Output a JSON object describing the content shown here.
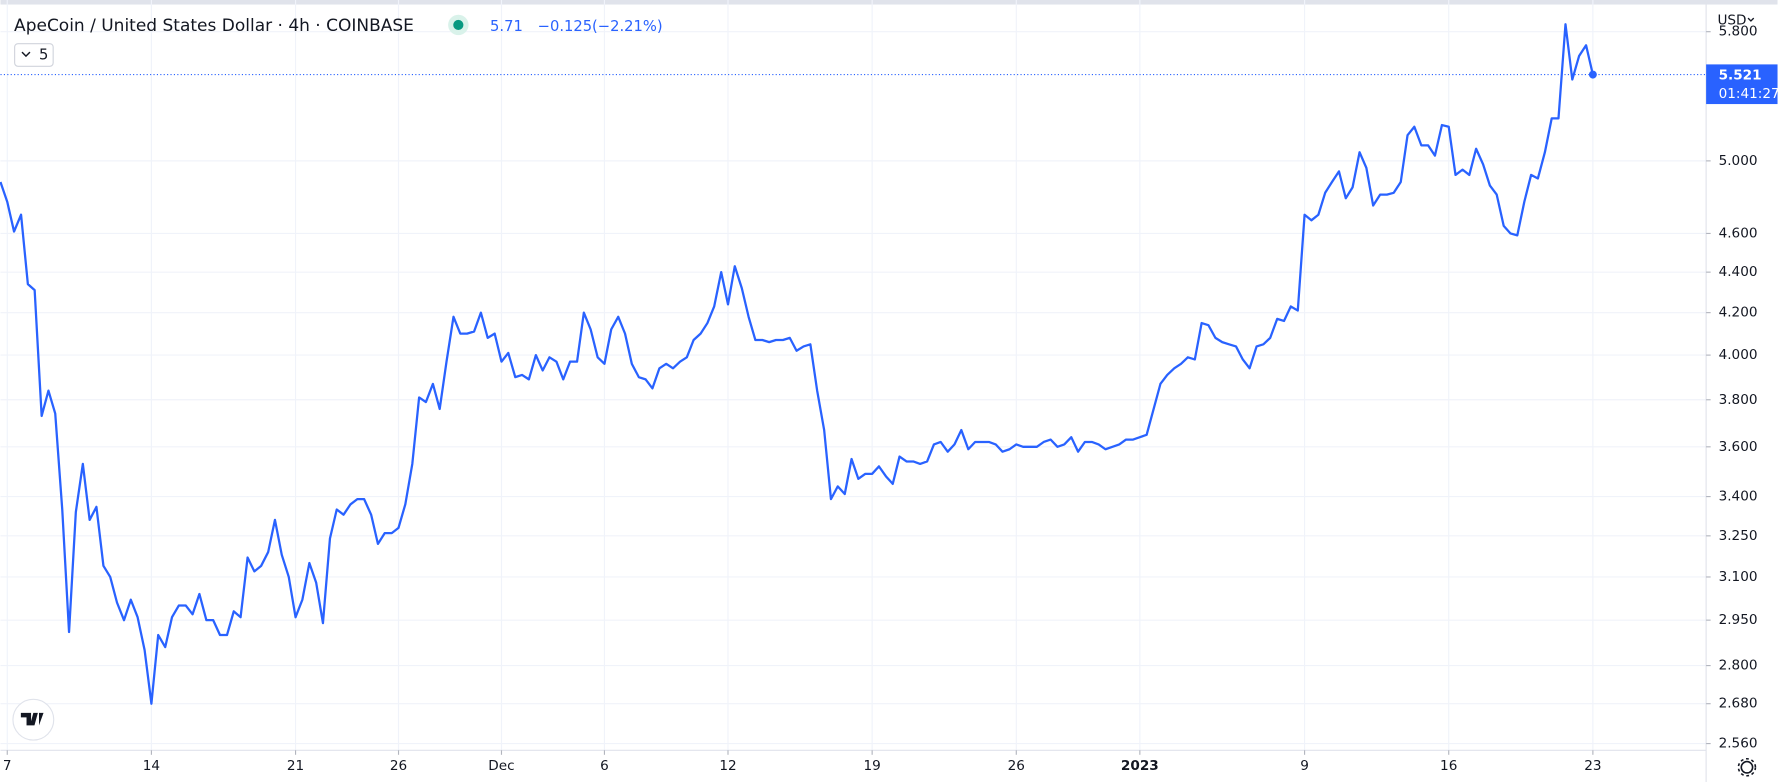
{
  "header": {
    "symbol": "ApeCoin / United States Dollar · 4h · COINBASE",
    "change": "−0.125",
    "change_pct": "(−2.21%)",
    "indicator_button": "5",
    "currency": "USD",
    "countdown": "01:41:27"
  },
  "chart_data": {
    "type": "line",
    "log_y": true,
    "grid": true,
    "xlim": [
      -0.33,
      82.5
    ],
    "xticks": [
      {
        "value": 0,
        "label": "7"
      },
      {
        "value": 7,
        "label": "14"
      },
      {
        "value": 14,
        "label": "21"
      },
      {
        "value": 19,
        "label": "26"
      },
      {
        "value": 24,
        "label": "Dec"
      },
      {
        "value": 29,
        "label": "6"
      },
      {
        "value": 35,
        "label": "12"
      },
      {
        "value": 42,
        "label": "19"
      },
      {
        "value": 49,
        "label": "26"
      },
      {
        "value": 55,
        "label": "2023"
      },
      {
        "value": 63,
        "label": "9"
      },
      {
        "value": 70,
        "label": "16"
      },
      {
        "value": 77,
        "label": "23"
      }
    ],
    "ylim": [
      2.547,
      5.976
    ],
    "yticks": [
      {
        "value": 2.56,
        "label": "2.560"
      },
      {
        "value": 2.68,
        "label": "2.680"
      },
      {
        "value": 2.8,
        "label": "2.800"
      },
      {
        "value": 2.95,
        "label": "2.950"
      },
      {
        "value": 3.1,
        "label": "3.100"
      },
      {
        "value": 3.25,
        "label": "3.250"
      },
      {
        "value": 3.4,
        "label": "3.400"
      },
      {
        "value": 3.6,
        "label": "3.600"
      },
      {
        "value": 3.8,
        "label": "3.800"
      },
      {
        "value": 4,
        "label": "4.000"
      },
      {
        "value": 4.2,
        "label": "4.200"
      },
      {
        "value": 4.4,
        "label": "4.400"
      },
      {
        "value": 4.6,
        "label": "4.600"
      },
      {
        "value": 5,
        "label": "5.000"
      },
      {
        "value": 5.8,
        "label": "5.800"
      }
    ],
    "series": [
      {
        "color": "#2962ff",
        "x": [
          -0.33,
          0,
          0.33,
          0.67,
          1,
          1.33,
          1.67,
          2,
          2.33,
          2.67,
          3,
          3.33,
          3.67,
          4,
          4.33,
          4.67,
          5,
          5.33,
          5.67,
          6,
          6.33,
          6.67,
          7,
          7.33,
          7.67,
          8,
          8.33,
          8.67,
          9,
          9.33,
          9.67,
          10,
          10.33,
          10.67,
          11,
          11.33,
          11.67,
          12,
          12.33,
          12.67,
          13,
          13.33,
          13.67,
          14,
          14.33,
          14.67,
          15,
          15.33,
          15.67,
          16,
          16.33,
          16.67,
          17,
          17.33,
          17.67,
          18,
          18.33,
          18.67,
          19,
          19.33,
          19.67,
          20,
          20.33,
          20.67,
          21,
          21.33,
          21.67,
          22,
          22.33,
          22.67,
          23,
          23.33,
          23.67,
          24,
          24.33,
          24.67,
          25,
          25.33,
          25.67,
          26,
          26.33,
          26.67,
          27,
          27.33,
          27.67,
          28,
          28.33,
          28.67,
          29,
          29.33,
          29.67,
          30,
          30.33,
          30.67,
          31,
          31.33,
          31.67,
          32,
          32.33,
          32.67,
          33,
          33.33,
          33.67,
          34,
          34.33,
          34.67,
          35,
          35.33,
          35.67,
          36,
          36.33,
          36.67,
          37,
          37.33,
          37.67,
          38,
          38.33,
          38.67,
          39,
          39.33,
          39.67,
          40,
          40.33,
          40.67,
          41,
          41.33,
          41.67,
          42,
          42.33,
          42.67,
          43,
          43.33,
          43.67,
          44,
          44.33,
          44.67,
          45,
          45.33,
          45.67,
          46,
          46.33,
          46.67,
          47,
          47.33,
          47.67,
          48,
          48.33,
          48.67,
          49,
          49.33,
          49.67,
          50,
          50.33,
          50.67,
          51,
          51.33,
          51.67,
          52,
          52.33,
          52.67,
          53,
          53.33,
          53.67,
          54,
          54.33,
          54.67,
          55,
          55.33,
          55.67,
          56,
          56.33,
          56.67,
          57,
          57.33,
          57.67,
          58,
          58.33,
          58.67,
          59,
          59.33,
          59.67,
          60,
          60.33,
          60.67,
          61,
          61.33,
          61.67,
          62,
          62.33,
          62.67,
          63,
          63.33,
          63.67,
          64,
          64.33,
          64.67,
          65,
          65.33,
          65.67,
          66,
          66.33,
          66.67,
          67,
          67.33,
          67.67,
          68,
          68.33,
          68.67,
          69,
          69.33,
          69.67,
          70,
          70.33,
          70.67,
          71,
          71.33,
          71.67,
          72,
          72.33,
          72.67,
          73,
          73.33,
          73.67,
          74,
          74.33,
          74.67,
          75,
          75.33,
          75.67,
          76,
          76.33,
          76.67,
          77
        ],
        "values": [
          4.88,
          4.77,
          4.61,
          4.7,
          4.34,
          4.31,
          3.73,
          3.84,
          3.74,
          3.35,
          2.91,
          3.34,
          3.53,
          3.31,
          3.36,
          3.14,
          3.1,
          3.01,
          2.95,
          3.02,
          2.96,
          2.85,
          2.68,
          2.9,
          2.86,
          2.96,
          3.0,
          3.0,
          2.97,
          3.04,
          2.95,
          2.95,
          2.9,
          2.9,
          2.98,
          2.96,
          3.17,
          3.12,
          3.14,
          3.19,
          3.31,
          3.18,
          3.1,
          2.96,
          3.02,
          3.15,
          3.08,
          2.94,
          3.24,
          3.35,
          3.33,
          3.37,
          3.39,
          3.39,
          3.33,
          3.22,
          3.26,
          3.26,
          3.28,
          3.37,
          3.53,
          3.81,
          3.79,
          3.87,
          3.76,
          3.97,
          4.18,
          4.1,
          4.1,
          4.11,
          4.2,
          4.08,
          4.1,
          3.97,
          4.01,
          3.9,
          3.91,
          3.89,
          4.0,
          3.93,
          3.99,
          3.97,
          3.89,
          3.97,
          3.97,
          4.2,
          4.12,
          3.99,
          3.96,
          4.12,
          4.18,
          4.1,
          3.96,
          3.9,
          3.89,
          3.85,
          3.94,
          3.96,
          3.94,
          3.97,
          3.99,
          4.07,
          4.1,
          4.15,
          4.23,
          4.4,
          4.24,
          4.43,
          4.32,
          4.18,
          4.07,
          4.07,
          4.06,
          4.07,
          4.07,
          4.08,
          4.02,
          4.04,
          4.05,
          3.84,
          3.67,
          3.39,
          3.44,
          3.41,
          3.55,
          3.47,
          3.49,
          3.49,
          3.52,
          3.48,
          3.45,
          3.56,
          3.54,
          3.54,
          3.53,
          3.54,
          3.61,
          3.62,
          3.58,
          3.61,
          3.67,
          3.59,
          3.62,
          3.62,
          3.62,
          3.61,
          3.58,
          3.59,
          3.61,
          3.6,
          3.6,
          3.6,
          3.62,
          3.63,
          3.6,
          3.61,
          3.64,
          3.58,
          3.62,
          3.62,
          3.61,
          3.59,
          3.6,
          3.61,
          3.63,
          3.63,
          3.64,
          3.65,
          3.76,
          3.87,
          3.91,
          3.94,
          3.96,
          3.99,
          3.98,
          4.15,
          4.14,
          4.08,
          4.06,
          4.05,
          4.04,
          3.98,
          3.94,
          4.04,
          4.05,
          4.08,
          4.17,
          4.16,
          4.23,
          4.21,
          4.7,
          4.67,
          4.7,
          4.82,
          4.88,
          4.94,
          4.79,
          4.85,
          5.05,
          4.96,
          4.75,
          4.81,
          4.81,
          4.82,
          4.88,
          5.15,
          5.2,
          5.09,
          5.09,
          5.03,
          5.21,
          5.2,
          4.92,
          4.95,
          4.92,
          5.07,
          4.98,
          4.86,
          4.81,
          4.64,
          4.6,
          4.59,
          4.77,
          4.92,
          4.9,
          5.05,
          5.25,
          5.25,
          5.85,
          5.49,
          5.64,
          5.71,
          5.521
        ]
      }
    ]
  }
}
